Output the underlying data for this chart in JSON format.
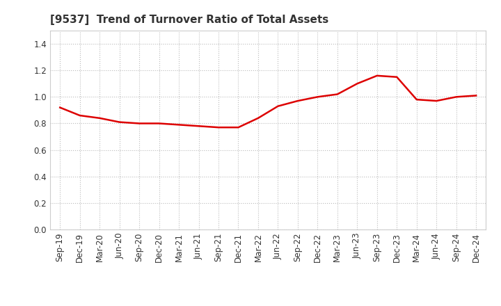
{
  "title": "[9537]  Trend of Turnover Ratio of Total Assets",
  "x_labels": [
    "Sep-19",
    "Dec-19",
    "Mar-20",
    "Jun-20",
    "Sep-20",
    "Dec-20",
    "Mar-21",
    "Jun-21",
    "Sep-21",
    "Dec-21",
    "Mar-22",
    "Jun-22",
    "Sep-22",
    "Dec-22",
    "Mar-23",
    "Jun-23",
    "Sep-23",
    "Dec-23",
    "Mar-24",
    "Jun-24",
    "Sep-24",
    "Dec-24"
  ],
  "y_values": [
    0.92,
    0.86,
    0.84,
    0.81,
    0.8,
    0.8,
    0.79,
    0.78,
    0.77,
    0.77,
    0.84,
    0.93,
    0.97,
    1.0,
    1.02,
    1.1,
    1.16,
    1.15,
    0.98,
    0.97,
    1.0,
    1.01
  ],
  "line_color": "#dd0000",
  "line_width": 1.8,
  "ylim": [
    0.0,
    1.5
  ],
  "yticks": [
    0.0,
    0.2,
    0.4,
    0.6,
    0.8,
    1.0,
    1.2,
    1.4
  ],
  "grid_color": "#bbbbbb",
  "background_color": "#ffffff",
  "title_fontsize": 11,
  "tick_fontsize": 8.5,
  "title_color": "#333333"
}
